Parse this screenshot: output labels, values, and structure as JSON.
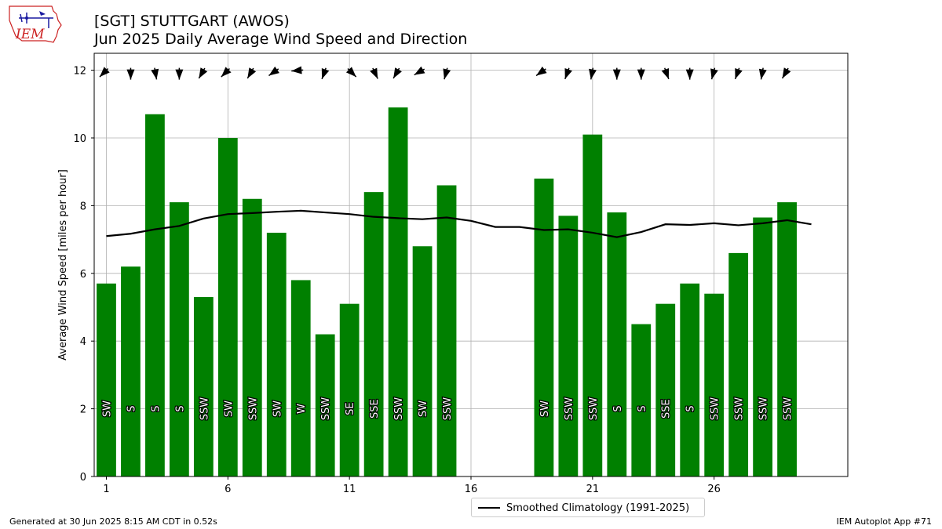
{
  "header": {
    "title": "[SGT] STUTTGART (AWOS)",
    "subtitle": "Jun 2025 Daily Average Wind Speed and Direction"
  },
  "logo": {
    "text": "IEM"
  },
  "footer": {
    "generated": "Generated at 30 Jun 2025 8:15 AM CDT in 0.52s",
    "app": "IEM Autoplot App #71"
  },
  "legend": {
    "climatology_label": "Smoothed Climatology (1991-2025)"
  },
  "colors": {
    "bar": "#008000",
    "climatology": "#000000",
    "grid": "#b0b0b0",
    "logo_red": "#cc2222",
    "logo_blue": "#1a1aa0"
  },
  "chart_data": {
    "type": "bar",
    "ylabel": "Average Wind Speed [miles per hour]",
    "xlim": [
      0.5,
      31.5
    ],
    "ylim": [
      0,
      12.5
    ],
    "xticks": [
      1,
      6,
      11,
      16,
      21,
      26
    ],
    "yticks": [
      0,
      2,
      4,
      6,
      8,
      10,
      12
    ],
    "grid": true,
    "legend_position": "below",
    "series": [
      {
        "name": "daily",
        "days": [
          1,
          2,
          3,
          4,
          5,
          6,
          7,
          8,
          9,
          10,
          11,
          12,
          13,
          14,
          15,
          19,
          20,
          21,
          22,
          23,
          24,
          25,
          26,
          27,
          28,
          29
        ],
        "speeds": [
          5.7,
          6.2,
          10.7,
          8.1,
          5.3,
          10.0,
          8.2,
          7.2,
          5.8,
          4.2,
          5.1,
          8.4,
          10.9,
          6.8,
          8.6,
          8.8,
          7.7,
          10.1,
          7.8,
          4.5,
          5.1,
          5.7,
          5.4,
          6.6,
          7.65,
          8.1
        ],
        "directions": [
          "SW",
          "S",
          "S",
          "S",
          "SSW",
          "SW",
          "SSW",
          "SW",
          "W",
          "SSW",
          "SE",
          "SSE",
          "SSW",
          "SW",
          "SSW",
          "SW",
          "SSW",
          "SSW",
          "S",
          "S",
          "SSE",
          "S",
          "SSW",
          "SSW",
          "SSW",
          "SSW"
        ],
        "arrow_from_deg": [
          225,
          180,
          170,
          180,
          210,
          225,
          210,
          235,
          265,
          200,
          135,
          155,
          210,
          240,
          195,
          235,
          200,
          190,
          180,
          180,
          160,
          180,
          195,
          200,
          190,
          210
        ]
      },
      {
        "name": "Smoothed Climatology (1991-2025)",
        "x": [
          1,
          2,
          3,
          4,
          5,
          6,
          7,
          8,
          9,
          10,
          11,
          12,
          13,
          14,
          15,
          16,
          17,
          18,
          19,
          20,
          21,
          22,
          23,
          24,
          25,
          26,
          27,
          28,
          29,
          30
        ],
        "y": [
          7.1,
          7.17,
          7.3,
          7.4,
          7.62,
          7.75,
          7.78,
          7.82,
          7.85,
          7.8,
          7.75,
          7.67,
          7.63,
          7.6,
          7.65,
          7.55,
          7.37,
          7.37,
          7.28,
          7.3,
          7.2,
          7.07,
          7.22,
          7.45,
          7.43,
          7.48,
          7.42,
          7.48,
          7.57,
          7.45
        ]
      }
    ]
  }
}
